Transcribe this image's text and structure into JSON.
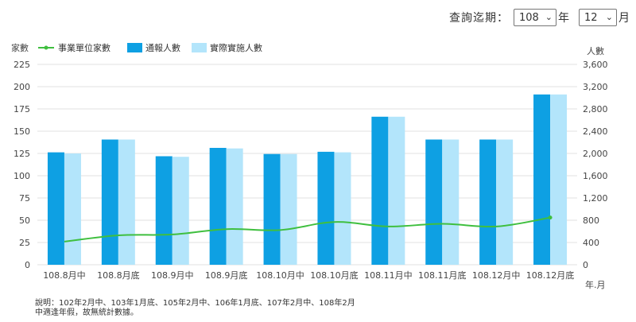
{
  "query": {
    "label": "查詢迄期：",
    "year": {
      "value": "108",
      "suffix": "年"
    },
    "month": {
      "value": "12",
      "suffix": "月"
    }
  },
  "colors": {
    "line": "#3fbf3f",
    "reported": "#0ea0e3",
    "actual": "#b3e5fb",
    "grid": "#e2e2e2"
  },
  "chart_data": {
    "type": "bar",
    "ylabel": "家數",
    "y2label": "人數",
    "xlabel": "年.月",
    "ylim": [
      0,
      225
    ],
    "y2lim": [
      0,
      3600
    ],
    "yticks": [
      0,
      25,
      50,
      75,
      100,
      125,
      150,
      175,
      200,
      225
    ],
    "y2ticks": [
      0,
      400,
      800,
      1200,
      1600,
      2000,
      2400,
      2800,
      3200,
      3600
    ],
    "grid": true,
    "legend_position": "top-left",
    "categories": [
      "108.8月中",
      "108.8月底",
      "108.9月中",
      "108.9月底",
      "108.10月中",
      "108.10月底",
      "108.11月中",
      "108.11月底",
      "108.12月中",
      "108.12月底"
    ],
    "series": [
      {
        "name": "事業單位家數",
        "type": "line",
        "axis": "left",
        "values": [
          26,
          33,
          34,
          40,
          39,
          48,
          43,
          46,
          43,
          53
        ]
      },
      {
        "name": "通報人數",
        "type": "bar",
        "axis": "right",
        "values": [
          2020,
          2250,
          1950,
          2100,
          1990,
          2030,
          2660,
          2250,
          2250,
          3060
        ]
      },
      {
        "name": "實際實施人數",
        "type": "bar",
        "axis": "right",
        "values": [
          2000,
          2250,
          1940,
          2090,
          1990,
          2020,
          2660,
          2250,
          2250,
          3060
        ]
      }
    ]
  },
  "note": {
    "line1": "說明：102年2月中、103年1月底、105年2月中、106年1月底、107年2月中、108年2月",
    "line2": "中適逢年假，故無統計數據。"
  }
}
